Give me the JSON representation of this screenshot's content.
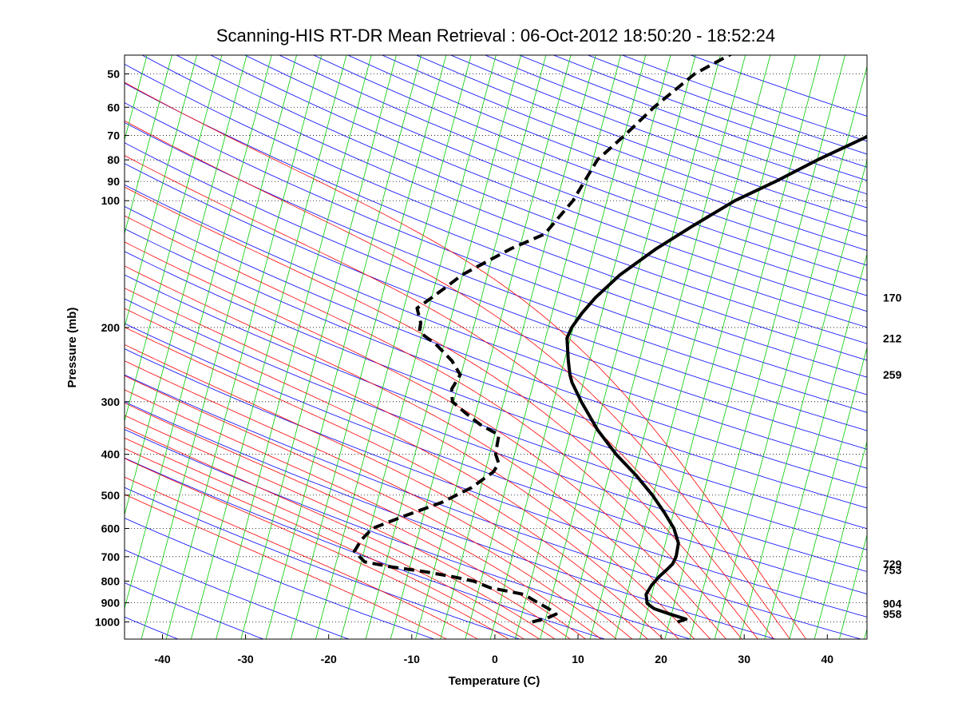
{
  "chart_data": {
    "type": "line",
    "subtype": "skew-T log-P sounding",
    "title": "Scanning-HIS RT-DR Mean Retrieval : 06-Oct-2012 18:50:20 - 18:52:24",
    "xlabel": "Temperature (C)",
    "ylabel": "Pressure (mb)",
    "xlim": [
      -45,
      45
    ],
    "ylim": [
      1090,
      44
    ],
    "x_ticks": [
      -40,
      -30,
      -20,
      -10,
      0,
      10,
      20,
      30,
      40
    ],
    "y_ticks": [
      50,
      60,
      70,
      80,
      90,
      100,
      200,
      300,
      400,
      500,
      600,
      700,
      800,
      900,
      1000
    ],
    "grid": "horizontal dotted at pressure ticks",
    "right_labels": [
      "170",
      "212",
      "259",
      "729",
      "753",
      "904",
      "958"
    ],
    "background_lines": {
      "dry_adiabats": {
        "color": "#0000ff",
        "thetas_K": [
          230,
          240,
          250,
          260,
          270,
          280,
          290,
          300,
          310,
          320,
          330,
          340,
          350,
          360,
          370,
          380,
          390,
          400,
          410,
          420,
          430,
          440,
          450,
          460,
          470,
          480,
          490,
          500,
          510,
          520,
          530,
          540,
          550,
          560,
          570,
          580,
          590,
          600,
          620
        ]
      },
      "moist_adiabats": {
        "color": "#ff0000",
        "thetaw_C": [
          -10,
          -6,
          -2,
          0,
          2,
          4,
          6,
          8,
          10,
          12,
          14,
          16,
          18,
          20,
          22,
          24,
          26,
          28,
          30,
          32,
          34,
          36
        ]
      },
      "mixing_ratio": {
        "color": "#00cc00",
        "dry_adiabat_overlay_color": "#8000ff"
      }
    },
    "series": [
      {
        "name": "Temperature",
        "style": "solid",
        "color": "#000000",
        "points": [
          [
            1000,
            22.0
          ],
          [
            985,
            22.8
          ],
          [
            958,
            20.5
          ],
          [
            930,
            18.2
          ],
          [
            904,
            17.0
          ],
          [
            860,
            16.2
          ],
          [
            820,
            16.2
          ],
          [
            780,
            16.5
          ],
          [
            753,
            16.9
          ],
          [
            729,
            17.2
          ],
          [
            700,
            17.1
          ],
          [
            650,
            16.4
          ],
          [
            600,
            14.8
          ],
          [
            550,
            12.5
          ],
          [
            500,
            9.8
          ],
          [
            450,
            6.5
          ],
          [
            400,
            2.5
          ],
          [
            350,
            -1.5
          ],
          [
            300,
            -5.5
          ],
          [
            270,
            -8.0
          ],
          [
            259,
            -8.8
          ],
          [
            240,
            -10.0
          ],
          [
            212,
            -11.8
          ],
          [
            200,
            -12.0
          ],
          [
            185,
            -11.8
          ],
          [
            170,
            -11.3
          ],
          [
            150,
            -10.0
          ],
          [
            130,
            -7.5
          ],
          [
            115,
            -4.8
          ],
          [
            100,
            -1.5
          ],
          [
            90,
            2.0
          ],
          [
            80,
            5.5
          ],
          [
            70,
            10.0
          ],
          [
            60,
            16.0
          ],
          [
            50,
            23.0
          ],
          [
            44,
            29.0
          ]
        ]
      },
      {
        "name": "Dewpoint",
        "style": "dashed",
        "color": "#000000",
        "points": [
          [
            1000,
            4.5
          ],
          [
            980,
            6.0
          ],
          [
            958,
            6.8
          ],
          [
            930,
            5.5
          ],
          [
            904,
            4.0
          ],
          [
            860,
            1.5
          ],
          [
            830,
            -3.0
          ],
          [
            800,
            -5.5
          ],
          [
            780,
            -8.5
          ],
          [
            760,
            -12.0
          ],
          [
            740,
            -16.5
          ],
          [
            720,
            -20.0
          ],
          [
            680,
            -22.0
          ],
          [
            640,
            -22.0
          ],
          [
            600,
            -21.5
          ],
          [
            560,
            -18.5
          ],
          [
            520,
            -15.0
          ],
          [
            480,
            -12.5
          ],
          [
            440,
            -11.0
          ],
          [
            420,
            -11.0
          ],
          [
            400,
            -12.0
          ],
          [
            380,
            -12.5
          ],
          [
            360,
            -13.0
          ],
          [
            340,
            -16.0
          ],
          [
            320,
            -18.5
          ],
          [
            300,
            -21.0
          ],
          [
            280,
            -22.0
          ],
          [
            259,
            -22.0
          ],
          [
            240,
            -24.0
          ],
          [
            220,
            -27.0
          ],
          [
            205,
            -30.0
          ],
          [
            195,
            -30.5
          ],
          [
            180,
            -32.0
          ],
          [
            170,
            -31.0
          ],
          [
            160,
            -30.0
          ],
          [
            150,
            -29.0
          ],
          [
            130,
            -25.0
          ],
          [
            120,
            -22.0
          ],
          [
            100,
            -21.0
          ],
          [
            90,
            -21.0
          ],
          [
            80,
            -21.0
          ],
          [
            70,
            -19.5
          ],
          [
            60,
            -18.0
          ],
          [
            50,
            -15.5
          ],
          [
            44,
            -12.0
          ]
        ]
      }
    ]
  }
}
